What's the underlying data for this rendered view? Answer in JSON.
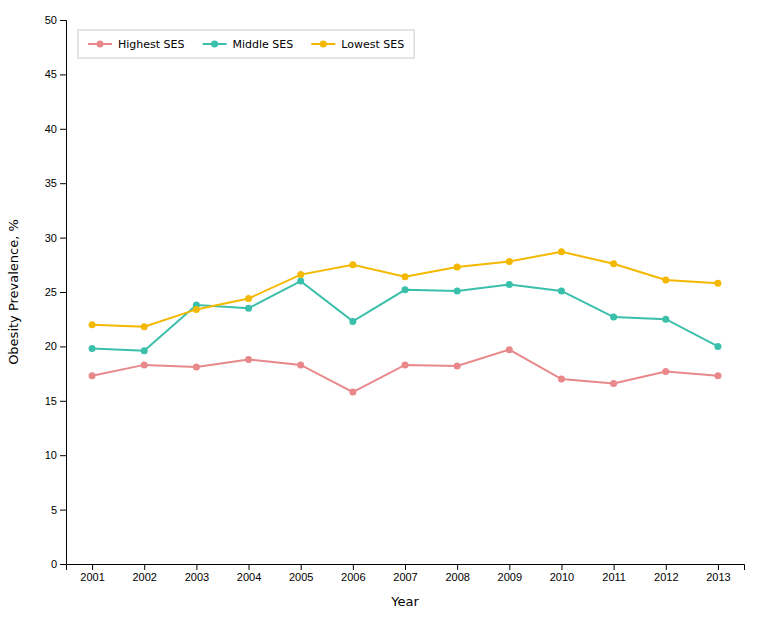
{
  "chart_data": {
    "type": "line",
    "xlabel": "Year",
    "ylabel": "Obesity Prevalence, %",
    "x": [
      2001,
      2002,
      2003,
      2004,
      2005,
      2006,
      2007,
      2008,
      2009,
      2010,
      2011,
      2012,
      2013
    ],
    "series": [
      {
        "name": "Highest SES",
        "color": "#e8888a",
        "marker": "circle",
        "values": [
          17.3,
          18.3,
          18.1,
          18.8,
          18.3,
          15.8,
          18.3,
          18.2,
          19.7,
          17.0,
          16.6,
          17.7,
          17.3
        ]
      },
      {
        "name": "Middle SES",
        "color": "#3abfab",
        "marker": "circle",
        "values": [
          19.8,
          19.6,
          23.8,
          23.5,
          26.0,
          22.3,
          25.2,
          25.1,
          25.7,
          25.1,
          22.7,
          22.5,
          20.0
        ]
      },
      {
        "name": "Lowest SES",
        "color": "#f5b800",
        "marker": "circle",
        "values": [
          22.0,
          21.8,
          23.4,
          24.4,
          26.6,
          27.5,
          26.4,
          27.3,
          27.8,
          28.7,
          27.6,
          26.1,
          25.8
        ]
      }
    ],
    "xlim": [
      2000.5,
      2013.5
    ],
    "xticks": [
      2001,
      2002,
      2003,
      2004,
      2005,
      2006,
      2007,
      2008,
      2009,
      2010,
      2011,
      2012,
      2013
    ],
    "ylim": [
      0,
      50
    ],
    "yticks": [
      0,
      5,
      10,
      15,
      20,
      25,
      30,
      35,
      40,
      45,
      50
    ],
    "grid": false,
    "legend": "top-left"
  }
}
